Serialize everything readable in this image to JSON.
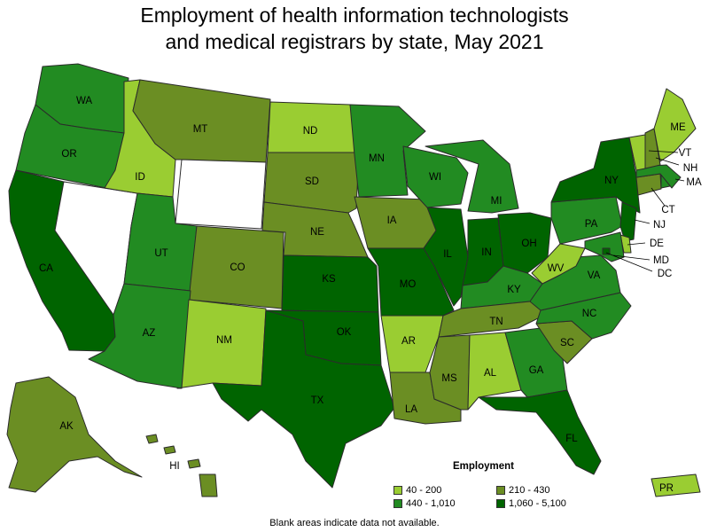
{
  "title_line1": "Employment of health information technologists",
  "title_line2": "and medical registrars by state, May 2021",
  "legend": {
    "title": "Employment",
    "items": [
      {
        "label": "40 - 200",
        "color": "#9ACD32"
      },
      {
        "label": "210 - 430",
        "color": "#6B8E23"
      },
      {
        "label": "440 - 1,010",
        "color": "#228B22"
      },
      {
        "label": "1,060 - 5,100",
        "color": "#006400"
      }
    ]
  },
  "note": "Blank areas indicate data not available.",
  "colors": {
    "na": "#ffffff",
    "border": "#2b2b2b"
  },
  "states": {
    "WA": {
      "label": "WA",
      "range": "440 - 1,010"
    },
    "OR": {
      "label": "OR",
      "range": "440 - 1,010"
    },
    "CA": {
      "label": "CA",
      "range": "1,060 - 5,100"
    },
    "NV": {
      "label": "",
      "range": "not available"
    },
    "ID": {
      "label": "ID",
      "range": "40 - 200"
    },
    "MT": {
      "label": "MT",
      "range": "210 - 430"
    },
    "WY": {
      "label": "",
      "range": "not available"
    },
    "UT": {
      "label": "UT",
      "range": "440 - 1,010"
    },
    "CO": {
      "label": "CO",
      "range": "210 - 430"
    },
    "AZ": {
      "label": "AZ",
      "range": "440 - 1,010"
    },
    "NM": {
      "label": "NM",
      "range": "40 - 200"
    },
    "ND": {
      "label": "ND",
      "range": "40 - 200"
    },
    "SD": {
      "label": "SD",
      "range": "210 - 430"
    },
    "NE": {
      "label": "NE",
      "range": "210 - 430"
    },
    "KS": {
      "label": "KS",
      "range": "1,060 - 5,100"
    },
    "OK": {
      "label": "OK",
      "range": "1,060 - 5,100"
    },
    "TX": {
      "label": "TX",
      "range": "1,060 - 5,100"
    },
    "MN": {
      "label": "MN",
      "range": "440 - 1,010"
    },
    "IA": {
      "label": "IA",
      "range": "210 - 430"
    },
    "MO": {
      "label": "MO",
      "range": "1,060 - 5,100"
    },
    "AR": {
      "label": "AR",
      "range": "40 - 200"
    },
    "LA": {
      "label": "LA",
      "range": "210 - 430"
    },
    "WI": {
      "label": "WI",
      "range": "440 - 1,010"
    },
    "IL": {
      "label": "IL",
      "range": "1,060 - 5,100"
    },
    "MI": {
      "label": "MI",
      "range": "440 - 1,010"
    },
    "IN": {
      "label": "IN",
      "range": "1,060 - 5,100"
    },
    "OH": {
      "label": "OH",
      "range": "1,060 - 5,100"
    },
    "KY": {
      "label": "KY",
      "range": "440 - 1,010"
    },
    "TN": {
      "label": "TN",
      "range": "210 - 430"
    },
    "MS": {
      "label": "MS",
      "range": "210 - 430"
    },
    "AL": {
      "label": "AL",
      "range": "40 - 200"
    },
    "GA": {
      "label": "GA",
      "range": "440 - 1,010"
    },
    "FL": {
      "label": "FL",
      "range": "1,060 - 5,100"
    },
    "SC": {
      "label": "SC",
      "range": "210 - 430"
    },
    "NC": {
      "label": "NC",
      "range": "440 - 1,010"
    },
    "VA": {
      "label": "VA",
      "range": "440 - 1,010"
    },
    "WV": {
      "label": "WV",
      "range": "40 - 200"
    },
    "PA": {
      "label": "PA",
      "range": "440 - 1,010"
    },
    "NY": {
      "label": "NY",
      "range": "1,060 - 5,100"
    },
    "NJ": {
      "label": "NJ",
      "range": "1,060 - 5,100"
    },
    "DE": {
      "label": "DE",
      "range": "40 - 200"
    },
    "MD": {
      "label": "MD",
      "range": "440 - 1,010"
    },
    "DC": {
      "label": "DC",
      "range": "1,060 - 5,100"
    },
    "CT": {
      "label": "CT",
      "range": "210 - 430"
    },
    "RI": {
      "label": "RI",
      "range": "440 - 1,010"
    },
    "MA": {
      "label": "MA",
      "range": "440 - 1,010"
    },
    "VT": {
      "label": "VT",
      "range": "40 - 200"
    },
    "NH": {
      "label": "NH",
      "range": "210 - 430"
    },
    "ME": {
      "label": "ME",
      "range": "40 - 200"
    },
    "AK": {
      "label": "AK",
      "range": "210 - 430"
    },
    "HI": {
      "label": "HI",
      "range": "210 - 430"
    },
    "PR": {
      "label": "PR",
      "range": "40 - 200"
    }
  }
}
